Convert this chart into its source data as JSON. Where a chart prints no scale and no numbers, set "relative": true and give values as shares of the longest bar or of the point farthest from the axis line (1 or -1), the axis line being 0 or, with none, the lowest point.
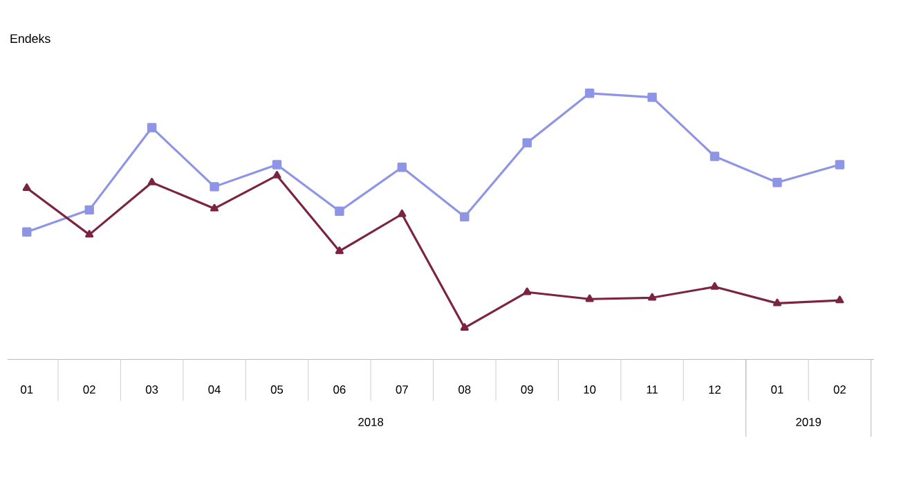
{
  "chart_data": {
    "type": "line",
    "relative": true,
    "ylabel": "Endeks",
    "legend": false,
    "categories": [
      "01",
      "02",
      "03",
      "04",
      "05",
      "06",
      "07",
      "08",
      "09",
      "10",
      "11",
      "12",
      "01",
      "02"
    ],
    "annotations": [
      "2018",
      "2019"
    ],
    "series": [
      {
        "color": "#8e94e6",
        "marker": "square",
        "values": [
          0.479,
          0.562,
          0.871,
          0.649,
          0.732,
          0.557,
          0.722,
          0.536,
          0.814,
          1,
          0.985,
          0.763,
          0.665,
          0.732
        ]
      },
      {
        "color": "#7b2340",
        "marker": "triangle",
        "values": [
          0.644,
          0.469,
          0.665,
          0.567,
          0.691,
          0.407,
          0.546,
          0.119,
          0.253,
          0.227,
          0.232,
          0.273,
          0.211,
          0.222
        ]
      }
    ]
  }
}
